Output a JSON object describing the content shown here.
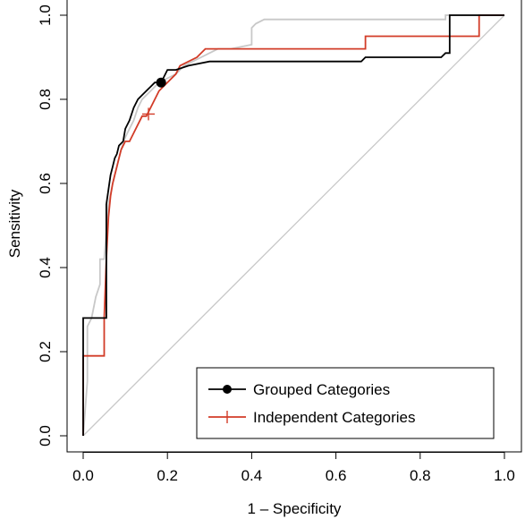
{
  "chart_data": {
    "type": "line",
    "xlabel": "1 – Specificity",
    "ylabel": "Sensitivity",
    "xlim": [
      0,
      1
    ],
    "ylim": [
      0,
      1
    ],
    "xticks": [
      "0.0",
      "0.2",
      "0.4",
      "0.6",
      "0.8",
      "1.0"
    ],
    "yticks": [
      "0.0",
      "0.2",
      "0.4",
      "0.6",
      "0.8",
      "1.0"
    ],
    "grid": false,
    "legend_position": "bottom-right",
    "reference_line": {
      "x": [
        0,
        1
      ],
      "y": [
        0,
        1
      ],
      "color": "#c8c8c8"
    },
    "series": [
      {
        "name": "Grouped Categories",
        "color": "#000000",
        "marker": "filled-circle",
        "marker_point": [
          0.185,
          0.84
        ],
        "x": [
          0,
          0,
          0.055,
          0.055,
          0.065,
          0.07,
          0.075,
          0.08,
          0.085,
          0.095,
          0.1,
          0.11,
          0.12,
          0.13,
          0.14,
          0.15,
          0.16,
          0.17,
          0.18,
          0.19,
          0.2,
          0.22,
          0.25,
          0.3,
          0.4,
          0.6,
          0.66,
          0.67,
          0.85,
          0.86,
          0.87,
          0.87,
          0.94,
          1.0
        ],
        "y": [
          0,
          0.28,
          0.28,
          0.55,
          0.62,
          0.64,
          0.66,
          0.67,
          0.69,
          0.7,
          0.73,
          0.75,
          0.78,
          0.8,
          0.81,
          0.82,
          0.83,
          0.84,
          0.84,
          0.85,
          0.87,
          0.87,
          0.88,
          0.89,
          0.89,
          0.89,
          0.89,
          0.9,
          0.9,
          0.91,
          0.91,
          1.0,
          1.0,
          1.0
        ]
      },
      {
        "name": "Independent Categories",
        "color": "#d23c28",
        "marker": "plus",
        "marker_point": [
          0.155,
          0.765
        ],
        "x": [
          0,
          0,
          0.05,
          0.05,
          0.055,
          0.06,
          0.065,
          0.07,
          0.075,
          0.08,
          0.085,
          0.09,
          0.095,
          0.1,
          0.11,
          0.12,
          0.13,
          0.14,
          0.15,
          0.16,
          0.17,
          0.18,
          0.19,
          0.22,
          0.23,
          0.25,
          0.27,
          0.29,
          0.4,
          0.6,
          0.67,
          0.67,
          0.9,
          0.94,
          0.94,
          1.0
        ],
        "y": [
          0,
          0.19,
          0.19,
          0.28,
          0.42,
          0.52,
          0.57,
          0.6,
          0.62,
          0.64,
          0.66,
          0.68,
          0.69,
          0.7,
          0.7,
          0.72,
          0.74,
          0.76,
          0.76,
          0.78,
          0.8,
          0.82,
          0.83,
          0.86,
          0.88,
          0.89,
          0.9,
          0.92,
          0.92,
          0.92,
          0.92,
          0.95,
          0.95,
          0.95,
          1.0,
          1.0
        ]
      },
      {
        "name": "",
        "color": "#c8c8c8",
        "marker": "none",
        "x": [
          0,
          0.01,
          0.01,
          0.02,
          0.03,
          0.04,
          0.04,
          0.05,
          0.06,
          0.07,
          0.08,
          0.09,
          0.1,
          0.11,
          0.12,
          0.13,
          0.14,
          0.16,
          0.18,
          0.2,
          0.22,
          0.24,
          0.26,
          0.28,
          0.3,
          0.32,
          0.35,
          0.4,
          0.4,
          0.41,
          0.43,
          0.48,
          0.65,
          0.86,
          0.86,
          1.0
        ],
        "y": [
          0,
          0.13,
          0.26,
          0.28,
          0.33,
          0.36,
          0.42,
          0.42,
          0.55,
          0.6,
          0.64,
          0.68,
          0.71,
          0.73,
          0.75,
          0.78,
          0.8,
          0.82,
          0.84,
          0.85,
          0.86,
          0.88,
          0.89,
          0.9,
          0.91,
          0.92,
          0.92,
          0.93,
          0.97,
          0.98,
          0.99,
          0.99,
          0.99,
          0.99,
          1.0,
          1.0
        ]
      }
    ]
  }
}
